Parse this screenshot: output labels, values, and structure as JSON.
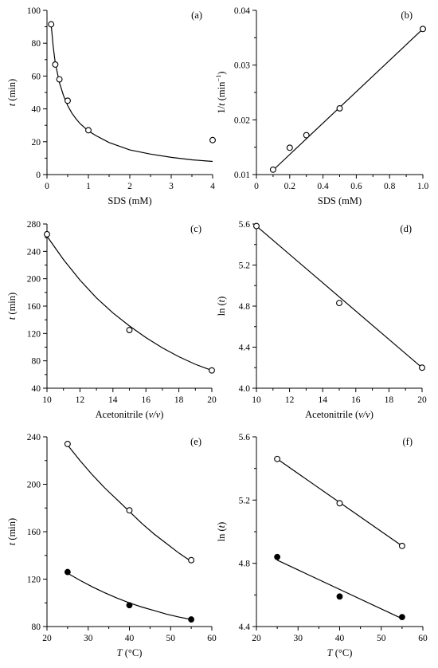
{
  "chart_data": [
    {
      "id": "a",
      "tag": "(a)",
      "type": "scatter",
      "xlabel": [
        "SDS (mM)"
      ],
      "ylabel": [
        {
          "t": "t",
          "i": true
        },
        {
          "t": " (min)"
        }
      ],
      "xlim": [
        0,
        4
      ],
      "ylim": [
        0,
        100
      ],
      "xticks": [
        0,
        1,
        2,
        3,
        4
      ],
      "xtick_labels": [
        "0",
        "1",
        "2",
        "3",
        "4"
      ],
      "yticks": [
        0,
        20,
        40,
        60,
        80,
        100
      ],
      "ytick_labels": [
        "0",
        "20",
        "40",
        "60",
        "80",
        "100"
      ],
      "series": [
        {
          "marker": "open",
          "points": [
            [
              0.1,
              91.5
            ],
            [
              0.2,
              67
            ],
            [
              0.3,
              58
            ],
            [
              0.5,
              45
            ],
            [
              1.0,
              27
            ],
            [
              4.0,
              21
            ]
          ],
          "curve": [
            [
              0.1,
              91.5
            ],
            [
              0.15,
              78
            ],
            [
              0.2,
              68
            ],
            [
              0.3,
              56
            ],
            [
              0.4,
              48
            ],
            [
              0.5,
              42
            ],
            [
              0.6,
              37.5
            ],
            [
              0.7,
              34
            ],
            [
              0.8,
              31
            ],
            [
              1.0,
              26.5
            ],
            [
              1.2,
              23.5
            ],
            [
              1.5,
              19.5
            ],
            [
              2.0,
              15
            ],
            [
              2.5,
              12.5
            ],
            [
              3.0,
              10.5
            ],
            [
              3.5,
              9
            ],
            [
              4.0,
              8
            ]
          ]
        }
      ]
    },
    {
      "id": "b",
      "tag": "(b)",
      "type": "scatter",
      "xlabel": [
        "SDS (mM)"
      ],
      "ylabel": [
        {
          "t": "1/"
        },
        {
          "t": "t",
          "i": true
        },
        {
          "t": " (min"
        },
        {
          "t": "−1",
          "sup": true
        },
        {
          "t": ")"
        }
      ],
      "xlim": [
        0,
        1
      ],
      "ylim": [
        0.01,
        0.04
      ],
      "xticks": [
        0,
        0.2,
        0.4,
        0.6,
        0.8,
        1.0
      ],
      "xtick_labels": [
        "0",
        "0.2",
        "0.4",
        "0.6",
        "0.8",
        "1.0"
      ],
      "yticks": [
        0.01,
        0.02,
        0.03,
        0.04
      ],
      "ytick_labels": [
        "0.01",
        "0.02",
        "0.03",
        "0.04"
      ],
      "series": [
        {
          "marker": "open",
          "points": [
            [
              0.1,
              0.0109
            ],
            [
              0.2,
              0.0149
            ],
            [
              0.3,
              0.0172
            ],
            [
              0.5,
              0.0221
            ],
            [
              1.0,
              0.0366
            ]
          ],
          "curve": [
            [
              0.1,
              0.0108
            ],
            [
              1.0,
              0.0366
            ]
          ]
        }
      ]
    },
    {
      "id": "c",
      "tag": "(c)",
      "type": "scatter",
      "xlabel": [
        {
          "t": "Acetonitrile ("
        },
        {
          "t": "v/v",
          "i": true
        },
        {
          "t": ")"
        }
      ],
      "ylabel": [
        {
          "t": "t",
          "i": true
        },
        {
          "t": " (min)"
        }
      ],
      "xlim": [
        10,
        20
      ],
      "ylim": [
        40,
        280
      ],
      "xticks": [
        10,
        12,
        14,
        16,
        18,
        20
      ],
      "xtick_labels": [
        "10",
        "12",
        "14",
        "16",
        "18",
        "20"
      ],
      "yticks": [
        40,
        80,
        120,
        160,
        200,
        240,
        280
      ],
      "ytick_labels": [
        "40",
        "80",
        "120",
        "160",
        "200",
        "240",
        "280"
      ],
      "series": [
        {
          "marker": "open",
          "points": [
            [
              10,
              265
            ],
            [
              15,
              125
            ],
            [
              20,
              66
            ]
          ],
          "curve": [
            [
              10,
              262
            ],
            [
              11,
              228
            ],
            [
              12,
              198
            ],
            [
              13,
              172
            ],
            [
              14,
              150
            ],
            [
              15,
              131
            ],
            [
              16,
              114
            ],
            [
              17,
              99
            ],
            [
              18,
              86
            ],
            [
              19,
              75
            ],
            [
              20,
              66
            ]
          ]
        }
      ]
    },
    {
      "id": "d",
      "tag": "(d)",
      "type": "scatter",
      "xlabel": [
        {
          "t": "Acetonitrile ("
        },
        {
          "t": "v/v",
          "i": true
        },
        {
          "t": ")"
        }
      ],
      "ylabel": [
        {
          "t": "ln ("
        },
        {
          "t": "t",
          "i": true
        },
        {
          "t": ")"
        }
      ],
      "xlim": [
        10,
        20
      ],
      "ylim": [
        4.0,
        5.6
      ],
      "xticks": [
        10,
        12,
        14,
        16,
        18,
        20
      ],
      "xtick_labels": [
        "10",
        "12",
        "14",
        "16",
        "18",
        "20"
      ],
      "yticks": [
        4.0,
        4.4,
        4.8,
        5.2,
        5.6
      ],
      "ytick_labels": [
        "4.0",
        "4.4",
        "4.8",
        "5.2",
        "5.6"
      ],
      "series": [
        {
          "marker": "open",
          "points": [
            [
              10,
              5.58
            ],
            [
              15,
              4.83
            ],
            [
              20,
              4.2
            ]
          ],
          "curve": [
            [
              10,
              5.58
            ],
            [
              20,
              4.2
            ]
          ]
        }
      ]
    },
    {
      "id": "e",
      "tag": "(e)",
      "type": "scatter",
      "xlabel": [
        {
          "t": "T",
          "i": true
        },
        {
          "t": " (°C)"
        }
      ],
      "ylabel": [
        {
          "t": "t",
          "i": true
        },
        {
          "t": " (min)"
        }
      ],
      "xlim": [
        20,
        60
      ],
      "ylim": [
        80,
        240
      ],
      "xticks": [
        20,
        30,
        40,
        50,
        60
      ],
      "xtick_labels": [
        "20",
        "30",
        "40",
        "50",
        "60"
      ],
      "yticks": [
        80,
        120,
        160,
        200,
        240
      ],
      "ytick_labels": [
        "80",
        "120",
        "160",
        "200",
        "240"
      ],
      "series": [
        {
          "marker": "open",
          "points": [
            [
              25,
              234
            ],
            [
              40,
              178
            ],
            [
              55,
              136
            ]
          ],
          "curve": [
            [
              25,
              233
            ],
            [
              28,
              220
            ],
            [
              31,
              208
            ],
            [
              34,
              197
            ],
            [
              37,
              187
            ],
            [
              40,
              177
            ],
            [
              43,
              167
            ],
            [
              46,
              158
            ],
            [
              49,
              150
            ],
            [
              52,
              142
            ],
            [
              55,
              135
            ]
          ]
        },
        {
          "marker": "filled",
          "points": [
            [
              25,
              126
            ],
            [
              40,
              98
            ],
            [
              55,
              86
            ]
          ],
          "curve": [
            [
              25,
              125
            ],
            [
              28,
              119
            ],
            [
              31,
              113.5
            ],
            [
              34,
              108.5
            ],
            [
              37,
              104
            ],
            [
              40,
              100
            ],
            [
              43,
              96.5
            ],
            [
              46,
              93.5
            ],
            [
              49,
              90.5
            ],
            [
              52,
              88
            ],
            [
              55,
              86
            ]
          ]
        }
      ]
    },
    {
      "id": "f",
      "tag": "(f)",
      "type": "scatter",
      "xlabel": [
        {
          "t": "T",
          "i": true
        },
        {
          "t": " (°C)"
        }
      ],
      "ylabel": [
        {
          "t": "ln ("
        },
        {
          "t": "t",
          "i": true
        },
        {
          "t": ")"
        }
      ],
      "xlim": [
        20,
        60
      ],
      "ylim": [
        4.4,
        5.6
      ],
      "xticks": [
        20,
        30,
        40,
        50,
        60
      ],
      "xtick_labels": [
        "20",
        "30",
        "40",
        "50",
        "60"
      ],
      "yticks": [
        4.4,
        4.8,
        5.2,
        5.6
      ],
      "ytick_labels": [
        "4.4",
        "4.8",
        "5.2",
        "5.6"
      ],
      "series": [
        {
          "marker": "open",
          "points": [
            [
              25,
              5.46
            ],
            [
              40,
              5.18
            ],
            [
              55,
              4.91
            ]
          ],
          "curve": [
            [
              25,
              5.46
            ],
            [
              55,
              4.91
            ]
          ]
        },
        {
          "marker": "filled",
          "points": [
            [
              25,
              4.84
            ],
            [
              40,
              4.59
            ],
            [
              55,
              4.46
            ]
          ],
          "curve": [
            [
              25,
              4.82
            ],
            [
              55,
              4.45
            ]
          ]
        }
      ]
    }
  ]
}
